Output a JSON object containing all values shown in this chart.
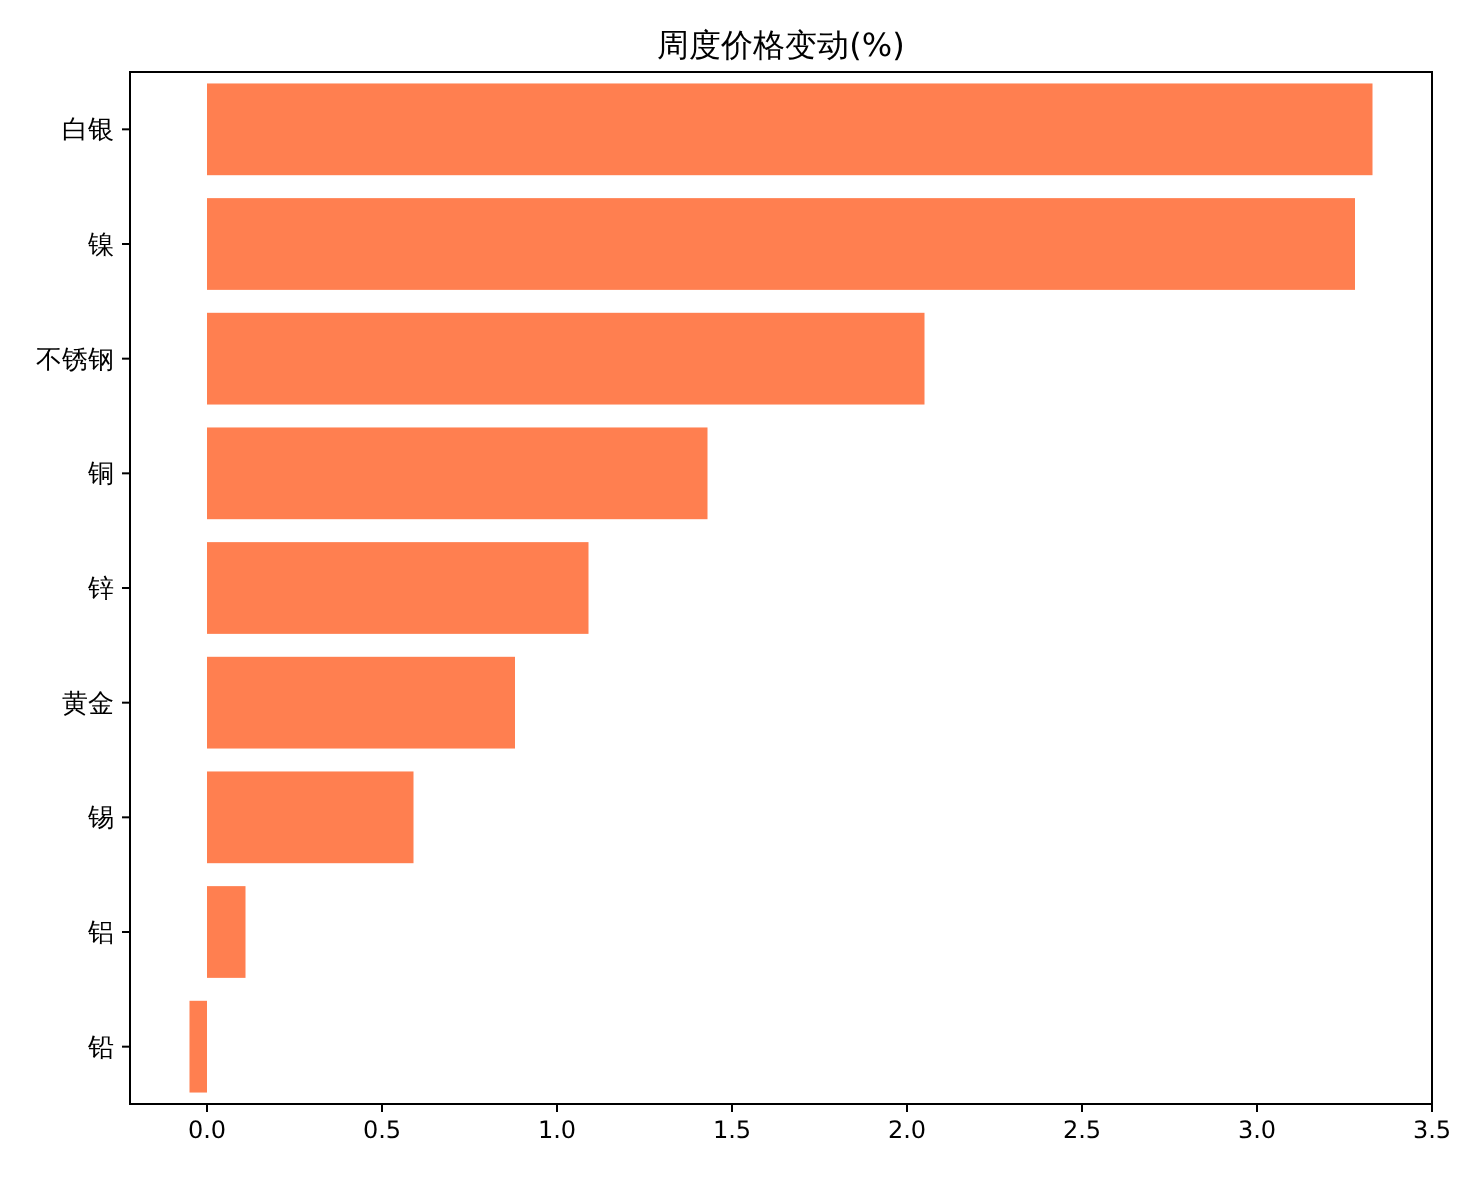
{
  "chart_data": {
    "type": "bar",
    "orientation": "horizontal",
    "title": "周度价格变动(%)",
    "categories": [
      "白银",
      "镍",
      "不锈钢",
      "铜",
      "锌",
      "黄金",
      "锡",
      "铝",
      "铅"
    ],
    "values": [
      3.33,
      3.28,
      2.05,
      1.43,
      1.09,
      0.88,
      0.59,
      0.11,
      -0.05
    ],
    "color": "#ff7f50",
    "xlim": [
      -0.22,
      3.5
    ],
    "xticks": [
      {
        "value": 0,
        "label": "0.0"
      },
      0.5,
      {
        "value": 1,
        "label": "1.0"
      },
      1.5,
      {
        "value": 2,
        "label": "2.0"
      },
      2.5,
      {
        "value": 3,
        "label": "3.0"
      },
      3.5
    ],
    "grid": false
  }
}
